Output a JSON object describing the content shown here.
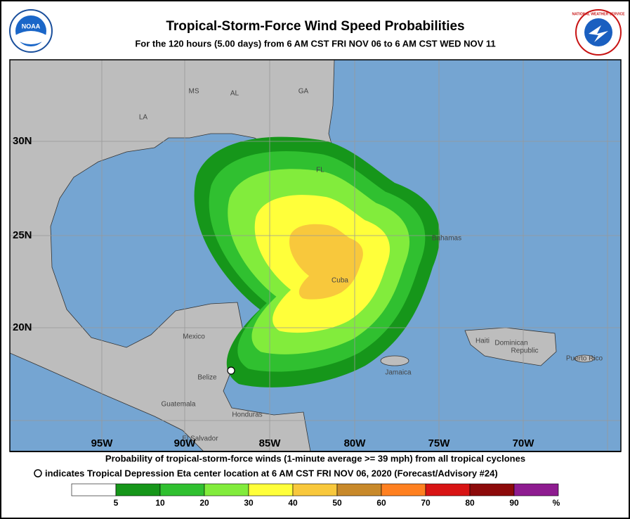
{
  "header": {
    "title": "Tropical-Storm-Force Wind Speed Probabilities",
    "subtitle": "For the 120 hours (5.00 days) from 6 AM CST FRI NOV 06 to 6 AM CST WED NOV 11",
    "logos": [
      "NOAA",
      "NATIONAL WEATHER SERVICE"
    ]
  },
  "map": {
    "latitude_labels": [
      "30N",
      "25N",
      "20N"
    ],
    "longitude_labels": [
      "95W",
      "90W",
      "85W",
      "80W",
      "75W",
      "70W"
    ],
    "places": [
      "MS",
      "AL",
      "GA",
      "LA",
      "FL",
      "Bahamas",
      "Cuba",
      "Mexico",
      "Haiti",
      "Dominican",
      "Republic",
      "Puerto Rico",
      "Belize",
      "Guatemala",
      "Honduras",
      "El Salvador",
      "Jamaica"
    ]
  },
  "footer": {
    "lines": [
      "Probability of tropical-storm-force winds (1-minute average >= 39 mph) from all tropical cyclones",
      "indicates Tropical Depression Eta center location at 6 AM CST FRI NOV 06, 2020 (Forecast/Advisory #24)"
    ]
  },
  "legend": {
    "ticks": [
      5,
      10,
      20,
      30,
      40,
      50,
      60,
      70,
      80,
      90
    ],
    "unit": "%",
    "colors": [
      "#ffffff",
      "#16961a",
      "#30c030",
      "#82ec3c",
      "#ffff3a",
      "#f8c83c",
      "#c8892a",
      "#ff8020",
      "#d81414",
      "#8c0a0a",
      "#8e1c90"
    ]
  }
}
